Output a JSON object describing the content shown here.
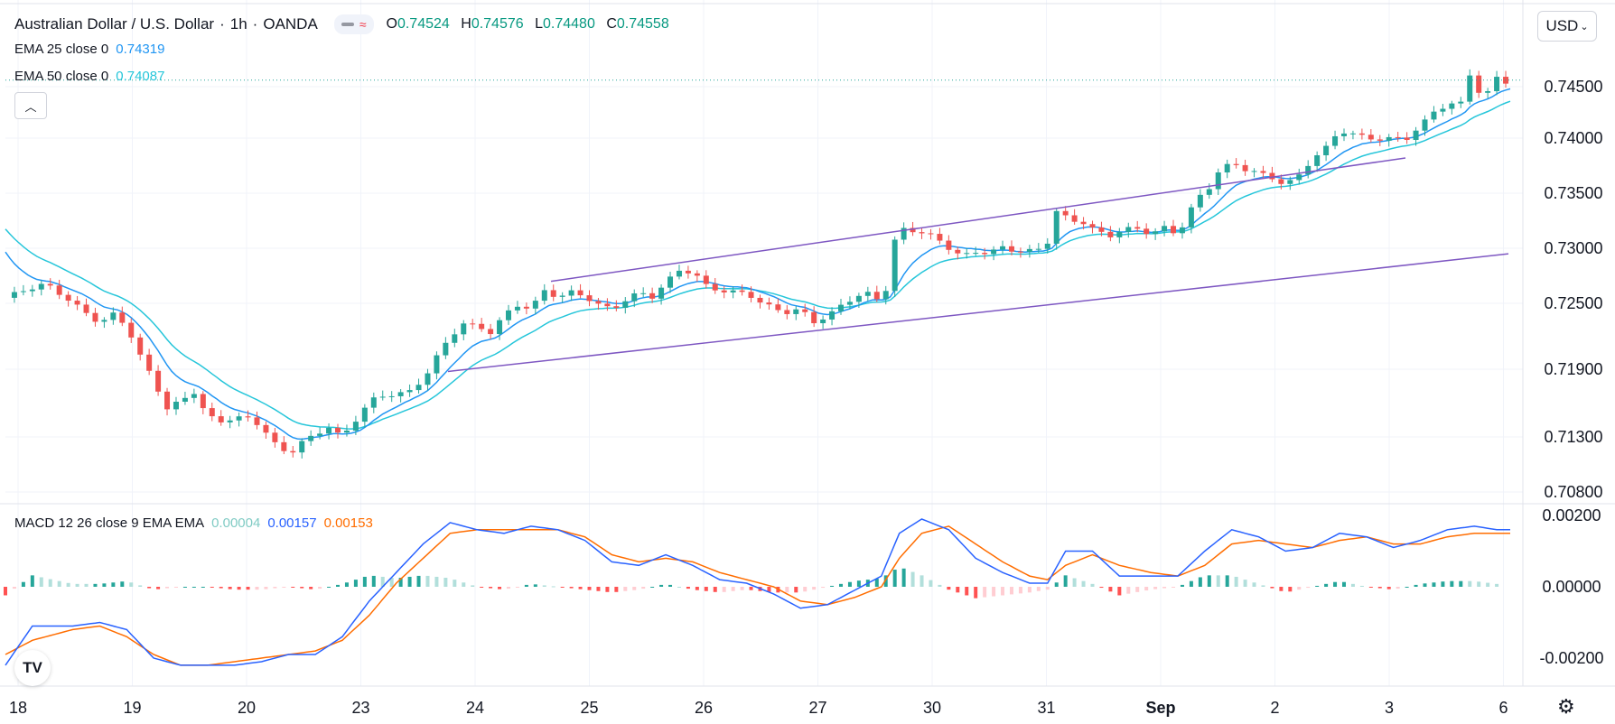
{
  "header": {
    "symbol": "Australian Dollar / U.S. Dollar",
    "interval": "1h",
    "source": "OANDA",
    "ohlc": {
      "o_label": "O",
      "o": "0.74524",
      "h_label": "H",
      "h": "0.74576",
      "l_label": "L",
      "l": "0.74480",
      "c_label": "C",
      "c": "0.74558"
    }
  },
  "legend": {
    "ema25_label": "EMA 25 close 0",
    "ema25_value": "0.74319",
    "ema50_label": "EMA 50 close 0",
    "ema50_value": "0.74087",
    "macd_label": "MACD 12 26 close 9 EMA EMA",
    "macd_hist": "0.00004",
    "macd_line": "0.00157",
    "macd_signal": "0.00153"
  },
  "currency_button": "USD",
  "colors": {
    "up": "#26a69a",
    "down": "#ef5350",
    "ema25": "#2196f3",
    "ema50": "#26c6da",
    "channel": "#7e57c2",
    "macd": "#2962ff",
    "signal": "#ff6d00",
    "hist_up_strong": "#26a69a",
    "hist_up_weak": "#b2dfdb",
    "hist_down_strong": "#ff5252",
    "hist_down_weak": "#ffcdd2"
  },
  "chart_data": [
    {
      "type": "candlestick",
      "title": "Australian Dollar / U.S. Dollar, 1h, OANDA",
      "y_ticks": [
        "0.70800",
        "0.71300",
        "0.71900",
        "0.72500",
        "0.73000",
        "0.73500",
        "0.74000",
        "0.74500"
      ],
      "x_ticks": [
        "18",
        "19",
        "20",
        "23",
        "24",
        "25",
        "26",
        "27",
        "30",
        "31",
        "Sep",
        "2",
        "3",
        "6"
      ],
      "last_price": 0.74558,
      "close_path": [
        [
          0,
          0.7255
        ],
        [
          12,
          0.7262
        ],
        [
          18,
          0.7266
        ],
        [
          30,
          0.7252
        ],
        [
          42,
          0.7234
        ],
        [
          48,
          0.724
        ],
        [
          54,
          0.7228
        ],
        [
          60,
          0.72
        ],
        [
          66,
          0.7178
        ],
        [
          72,
          0.7155
        ],
        [
          78,
          0.7163
        ],
        [
          84,
          0.7172
        ],
        [
          90,
          0.715
        ],
        [
          96,
          0.7144
        ],
        [
          102,
          0.7146
        ],
        [
          108,
          0.7144
        ],
        [
          114,
          0.7138
        ],
        [
          120,
          0.7123
        ],
        [
          126,
          0.7115
        ],
        [
          132,
          0.7128
        ],
        [
          138,
          0.7133
        ],
        [
          144,
          0.714
        ],
        [
          150,
          0.7128
        ],
        [
          156,
          0.7143
        ],
        [
          162,
          0.716
        ],
        [
          168,
          0.7165
        ],
        [
          174,
          0.717
        ],
        [
          180,
          0.7172
        ],
        [
          186,
          0.7183
        ],
        [
          192,
          0.7202
        ],
        [
          198,
          0.7218
        ],
        [
          204,
          0.723
        ],
        [
          210,
          0.7226
        ],
        [
          216,
          0.7223
        ],
        [
          222,
          0.724
        ],
        [
          228,
          0.725
        ],
        [
          234,
          0.7248
        ],
        [
          240,
          0.7262
        ],
        [
          246,
          0.7255
        ],
        [
          252,
          0.7258
        ],
        [
          258,
          0.7254
        ],
        [
          264,
          0.7248
        ],
        [
          270,
          0.7245
        ],
        [
          276,
          0.7255
        ],
        [
          282,
          0.7262
        ],
        [
          288,
          0.7257
        ],
        [
          294,
          0.7268
        ],
        [
          300,
          0.7278
        ],
        [
          306,
          0.7276
        ],
        [
          312,
          0.7265
        ],
        [
          318,
          0.7262
        ],
        [
          324,
          0.7262
        ],
        [
          330,
          0.7262
        ],
        [
          336,
          0.7252
        ],
        [
          342,
          0.7245
        ],
        [
          348,
          0.724
        ],
        [
          354,
          0.7242
        ],
        [
          360,
          0.7232
        ],
        [
          366,
          0.7238
        ],
        [
          372,
          0.725
        ],
        [
          378,
          0.7258
        ],
        [
          384,
          0.726
        ],
        [
          390,
          0.7252
        ],
        [
          394,
          0.7272
        ],
        [
          396,
          0.7305
        ],
        [
          400,
          0.7315
        ],
        [
          408,
          0.7313
        ],
        [
          414,
          0.731
        ],
        [
          420,
          0.7302
        ],
        [
          426,
          0.7295
        ],
        [
          432,
          0.7298
        ],
        [
          438,
          0.7296
        ],
        [
          444,
          0.7299
        ],
        [
          450,
          0.7295
        ],
        [
          456,
          0.7296
        ],
        [
          462,
          0.73
        ],
        [
          466,
          0.7313
        ],
        [
          468,
          0.7335
        ],
        [
          474,
          0.7328
        ],
        [
          480,
          0.7325
        ],
        [
          486,
          0.7315
        ],
        [
          492,
          0.731
        ],
        [
          498,
          0.7315
        ],
        [
          504,
          0.7316
        ],
        [
          510,
          0.7313
        ],
        [
          516,
          0.732
        ],
        [
          522,
          0.7315
        ],
        [
          526,
          0.733
        ],
        [
          530,
          0.7345
        ],
        [
          536,
          0.7355
        ],
        [
          540,
          0.7368
        ],
        [
          546,
          0.7375
        ],
        [
          552,
          0.737
        ],
        [
          558,
          0.7368
        ],
        [
          564,
          0.7365
        ],
        [
          570,
          0.736
        ],
        [
          576,
          0.7368
        ],
        [
          582,
          0.7382
        ],
        [
          588,
          0.739
        ],
        [
          594,
          0.7405
        ],
        [
          600,
          0.7402
        ],
        [
          606,
          0.74
        ],
        [
          612,
          0.74
        ],
        [
          618,
          0.7402
        ],
        [
          624,
          0.7402
        ],
        [
          630,
          0.7412
        ],
        [
          636,
          0.7425
        ],
        [
          642,
          0.743
        ],
        [
          648,
          0.7432
        ],
        [
          652,
          0.746
        ],
        [
          656,
          0.7445
        ],
        [
          660,
          0.7445
        ],
        [
          664,
          0.746
        ],
        [
          670,
          0.7455
        ]
      ],
      "channel_upper": [
        [
          0.727,
          0.7382
        ]
      ],
      "channel_lower": [
        [
          0.7188,
          0.7295
        ]
      ]
    },
    {
      "type": "macd",
      "title": "MACD 12 26 close 9 EMA EMA",
      "y_ticks": [
        "0.00200",
        "0.00000",
        "-0.00200"
      ],
      "macd_path": [
        [
          0,
          -0.0022
        ],
        [
          12,
          -0.0011
        ],
        [
          30,
          -0.0011
        ],
        [
          42,
          -0.001
        ],
        [
          54,
          -0.0012
        ],
        [
          66,
          -0.002
        ],
        [
          78,
          -0.0022
        ],
        [
          90,
          -0.0022
        ],
        [
          102,
          -0.0022
        ],
        [
          114,
          -0.0021
        ],
        [
          126,
          -0.0019
        ],
        [
          138,
          -0.0019
        ],
        [
          150,
          -0.0014
        ],
        [
          162,
          -0.0004
        ],
        [
          174,
          0.0004
        ],
        [
          186,
          0.0012
        ],
        [
          198,
          0.0018
        ],
        [
          210,
          0.0016
        ],
        [
          222,
          0.0015
        ],
        [
          234,
          0.0017
        ],
        [
          246,
          0.0016
        ],
        [
          258,
          0.0013
        ],
        [
          270,
          0.0007
        ],
        [
          282,
          0.0006
        ],
        [
          294,
          0.0009
        ],
        [
          306,
          0.0006
        ],
        [
          318,
          0.0002
        ],
        [
          330,
          0.0001
        ],
        [
          342,
          -0.0002
        ],
        [
          354,
          -0.0006
        ],
        [
          366,
          -0.0005
        ],
        [
          378,
          -0.0001
        ],
        [
          390,
          0.0003
        ],
        [
          398,
          0.0015
        ],
        [
          408,
          0.0019
        ],
        [
          420,
          0.0016
        ],
        [
          432,
          0.0008
        ],
        [
          444,
          0.0004
        ],
        [
          456,
          0.0001
        ],
        [
          464,
          0.0001
        ],
        [
          472,
          0.001
        ],
        [
          484,
          0.001
        ],
        [
          496,
          0.0003
        ],
        [
          510,
          0.0003
        ],
        [
          522,
          0.0003
        ],
        [
          534,
          0.001
        ],
        [
          546,
          0.0016
        ],
        [
          558,
          0.0014
        ],
        [
          570,
          0.001
        ],
        [
          582,
          0.0011
        ],
        [
          594,
          0.0015
        ],
        [
          606,
          0.0014
        ],
        [
          618,
          0.0011
        ],
        [
          630,
          0.0013
        ],
        [
          642,
          0.0016
        ],
        [
          654,
          0.0017
        ],
        [
          664,
          0.0016
        ]
      ],
      "signal_path": [
        [
          0,
          -0.0019
        ],
        [
          12,
          -0.0015
        ],
        [
          30,
          -0.0012
        ],
        [
          42,
          -0.0011
        ],
        [
          54,
          -0.0014
        ],
        [
          66,
          -0.0019
        ],
        [
          78,
          -0.0022
        ],
        [
          90,
          -0.0022
        ],
        [
          102,
          -0.0021
        ],
        [
          114,
          -0.002
        ],
        [
          126,
          -0.0019
        ],
        [
          138,
          -0.0018
        ],
        [
          150,
          -0.0015
        ],
        [
          162,
          -0.0008
        ],
        [
          174,
          0.0001
        ],
        [
          186,
          0.0008
        ],
        [
          198,
          0.0015
        ],
        [
          210,
          0.0016
        ],
        [
          222,
          0.0016
        ],
        [
          234,
          0.0016
        ],
        [
          246,
          0.0016
        ],
        [
          258,
          0.0014
        ],
        [
          270,
          0.0009
        ],
        [
          282,
          0.0007
        ],
        [
          294,
          0.0008
        ],
        [
          306,
          0.0007
        ],
        [
          318,
          0.0004
        ],
        [
          330,
          0.0002
        ],
        [
          342,
          0.0
        ],
        [
          354,
          -0.0004
        ],
        [
          366,
          -0.0005
        ],
        [
          378,
          -0.0003
        ],
        [
          390,
          0.0
        ],
        [
          398,
          0.0008
        ],
        [
          408,
          0.0015
        ],
        [
          420,
          0.0017
        ],
        [
          432,
          0.0012
        ],
        [
          444,
          0.0007
        ],
        [
          456,
          0.0003
        ],
        [
          464,
          0.0002
        ],
        [
          472,
          0.0006
        ],
        [
          484,
          0.0009
        ],
        [
          496,
          0.0006
        ],
        [
          510,
          0.0004
        ],
        [
          522,
          0.0003
        ],
        [
          534,
          0.0006
        ],
        [
          546,
          0.0012
        ],
        [
          558,
          0.0013
        ],
        [
          570,
          0.0012
        ],
        [
          582,
          0.0011
        ],
        [
          594,
          0.0013
        ],
        [
          606,
          0.0014
        ],
        [
          618,
          0.0012
        ],
        [
          630,
          0.0012
        ],
        [
          642,
          0.0014
        ],
        [
          654,
          0.0015
        ],
        [
          664,
          0.0015
        ]
      ]
    }
  ]
}
